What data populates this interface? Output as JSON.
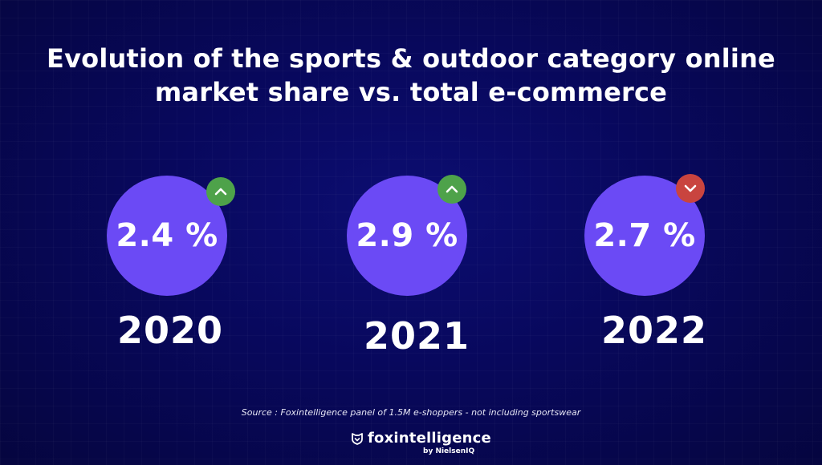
{
  "title": {
    "line1": "Evolution of the sports & outdoor category online",
    "line2": "market share vs. total e-commerce"
  },
  "colors": {
    "background": "#08085c",
    "circle": "#6b4af5",
    "up": "#4ea24a",
    "down": "#c9443f"
  },
  "chart_data": {
    "type": "bar",
    "title": "Evolution of the sports & outdoor category online market share vs. total e-commerce",
    "categories": [
      "2020",
      "2021",
      "2022"
    ],
    "values": [
      2.4,
      2.9,
      2.7
    ],
    "value_labels": [
      "2.4 %",
      "2.9 %",
      "2.7 %"
    ],
    "trend_icons": [
      "chevron-up-icon",
      "chevron-up-icon",
      "chevron-down-icon"
    ],
    "grid": false
  },
  "source": "Source : Foxintelligence panel of 1.5M e-shoppers - not including sportswear",
  "logo": {
    "name": "foxintelligence",
    "sub": "by NielsenIQ"
  }
}
